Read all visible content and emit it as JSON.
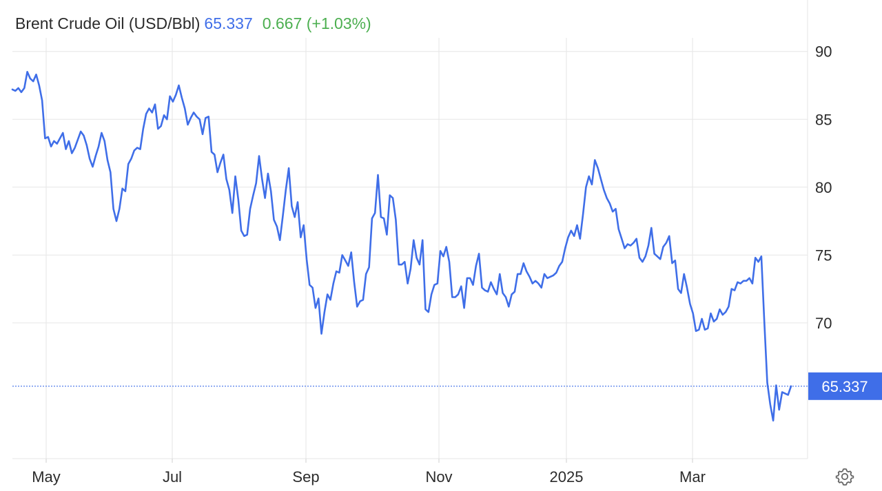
{
  "header": {
    "instrument": "Brent Crude Oil (USD/Bbl)",
    "price": "65.337",
    "change": "0.667",
    "change_pct": "(+1.03%)"
  },
  "colors": {
    "line": "#3f6ee8",
    "change_positive": "#4caf50",
    "grid": "#e6e6e6",
    "axis_text": "#2b2b2b",
    "badge_bg": "#3f6ee8",
    "badge_text": "#ffffff"
  },
  "settings_icon": "gear-icon",
  "chart_data": {
    "type": "line",
    "title": "",
    "xlabel": "",
    "ylabel": "",
    "x_ticks": [
      "May",
      "Jul",
      "Sep",
      "Nov",
      "2025",
      "Mar"
    ],
    "y_ticks": [
      70,
      75,
      80,
      85,
      90
    ],
    "ylim": [
      60,
      91
    ],
    "y_axis_side": "right",
    "grid": "horizontal",
    "last_value_label": "65.337",
    "last_value": 65.337,
    "series": [
      {
        "values": [
          87.2,
          87.1,
          87.3,
          87.0,
          87.3,
          88.5,
          88.0,
          87.8,
          88.3,
          87.5,
          86.4,
          83.6,
          83.7,
          83.0,
          83.4,
          83.2,
          83.6,
          84.0,
          82.8,
          83.4,
          82.5,
          82.9,
          83.5,
          84.1,
          83.8,
          83.1,
          82.1,
          81.5,
          82.3,
          83.0,
          84.0,
          83.4,
          82.0,
          81.1,
          78.4,
          77.5,
          78.4,
          79.9,
          79.7,
          81.7,
          82.1,
          82.7,
          82.9,
          82.8,
          84.3,
          85.4,
          85.8,
          85.5,
          86.1,
          84.3,
          84.5,
          85.3,
          85.0,
          86.7,
          86.3,
          86.8,
          87.5,
          86.6,
          85.8,
          84.6,
          85.1,
          85.5,
          85.2,
          85.0,
          83.9,
          85.1,
          85.2,
          82.6,
          82.4,
          81.1,
          81.8,
          82.4,
          80.6,
          79.8,
          78.1,
          80.8,
          79.1,
          76.8,
          76.4,
          76.5,
          78.4,
          79.4,
          80.3,
          82.3,
          80.6,
          79.2,
          81.0,
          79.7,
          77.6,
          77.1,
          76.1,
          77.9,
          79.8,
          81.4,
          78.6,
          77.8,
          78.9,
          76.3,
          77.2,
          74.7,
          72.8,
          72.6,
          71.1,
          71.8,
          69.2,
          70.8,
          72.1,
          71.7,
          72.9,
          73.8,
          73.7,
          75.0,
          74.6,
          74.2,
          75.2,
          73.0,
          71.2,
          71.6,
          71.7,
          73.6,
          74.1,
          77.7,
          78.1,
          80.9,
          77.8,
          77.7,
          76.5,
          79.4,
          79.2,
          77.6,
          74.3,
          74.3,
          74.5,
          72.9,
          74.0,
          76.1,
          74.8,
          74.3,
          76.1,
          71.0,
          70.8,
          72.1,
          72.8,
          72.9,
          75.3,
          74.9,
          75.6,
          74.5,
          71.9,
          71.9,
          72.1,
          72.7,
          71.1,
          73.3,
          73.3,
          72.8,
          74.2,
          75.1,
          72.6,
          72.4,
          72.3,
          73.0,
          72.5,
          72.1,
          73.6,
          72.2,
          71.9,
          71.2,
          72.1,
          72.3,
          73.6,
          73.6,
          74.4,
          73.8,
          73.4,
          72.9,
          73.1,
          72.9,
          72.6,
          73.6,
          73.3,
          73.4,
          73.5,
          73.7,
          74.2,
          74.5,
          75.5,
          76.3,
          76.8,
          76.4,
          77.2,
          76.2,
          78.0,
          80.0,
          80.8,
          80.2,
          82.0,
          81.4,
          80.6,
          79.8,
          79.2,
          78.8,
          78.2,
          78.4,
          76.9,
          76.2,
          75.5,
          75.8,
          75.7,
          75.9,
          76.2,
          74.8,
          74.5,
          74.9,
          75.7,
          77.0,
          75.1,
          74.9,
          74.7,
          75.6,
          75.9,
          76.4,
          74.4,
          74.6,
          72.5,
          72.2,
          73.6,
          72.6,
          71.4,
          70.7,
          69.4,
          69.5,
          70.3,
          69.5,
          69.6,
          70.7,
          70.1,
          70.3,
          71.0,
          70.6,
          70.8,
          71.2,
          72.5,
          72.4,
          73.0,
          72.9,
          73.1,
          73.1,
          73.3,
          72.9,
          74.8,
          74.5,
          74.9,
          70.1,
          65.6,
          64.0,
          62.8,
          65.4,
          63.6,
          64.9,
          64.8,
          64.7,
          65.337
        ],
        "x_start": "2024-04-02",
        "x_end": "2025-04-14"
      }
    ]
  }
}
